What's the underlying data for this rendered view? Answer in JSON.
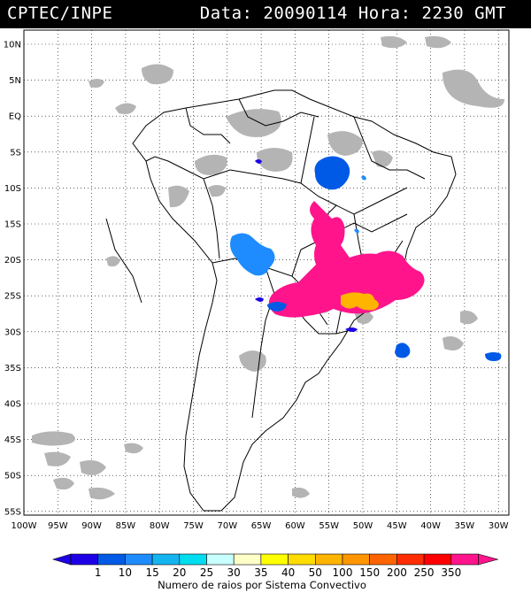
{
  "header": {
    "source": "CPTEC/INPE",
    "datetime": "Data: 20090114 Hora: 2230 GMT"
  },
  "map": {
    "lat_labels": [
      "10N",
      "5N",
      "EQ",
      "5S",
      "10S",
      "15S",
      "20S",
      "25S",
      "30S",
      "35S",
      "40S",
      "45S",
      "50S",
      "55S"
    ],
    "lon_labels": [
      "100W",
      "95W",
      "90W",
      "85W",
      "80W",
      "75W",
      "70W",
      "65W",
      "60W",
      "55W",
      "50W",
      "45W",
      "40W",
      "35W",
      "30W"
    ],
    "cloud_color": "#b4b4b4",
    "border_color": "#000000"
  },
  "legend": {
    "title": "Numero de raios por Sistema Convectivo",
    "values": [
      "1",
      "10",
      "15",
      "20",
      "25",
      "30",
      "35",
      "40",
      "50",
      "100",
      "150",
      "200",
      "250",
      "350"
    ],
    "colors": [
      "#1e00e6",
      "#005ae6",
      "#1e8cff",
      "#14b4f0",
      "#00dcf0",
      "#c8ffff",
      "#ffffc8",
      "#ffff00",
      "#ffdc00",
      "#ffb400",
      "#ff9600",
      "#ff6400",
      "#ff2d00",
      "#ff0000",
      "#ff148c"
    ],
    "low_arrow_color": "#1e00e6",
    "high_arrow_color": "#ff148c"
  }
}
